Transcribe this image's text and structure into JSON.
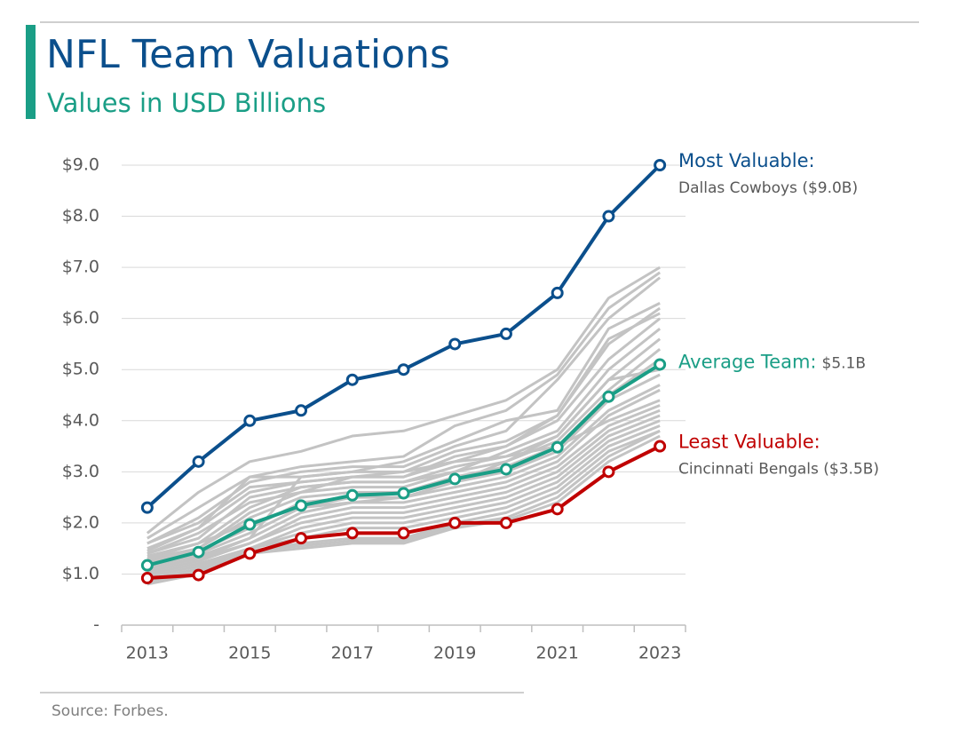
{
  "chart_data": {
    "type": "line",
    "title": "NFL Team Valuations",
    "subtitle": "Values in USD Billions",
    "source": "Source: Forbes.",
    "categories": [
      "2013",
      null,
      "2015",
      null,
      "2017",
      null,
      "2019",
      null,
      "2021",
      null,
      "2023"
    ],
    "ylim": [
      0,
      9
    ],
    "yticks": [
      {
        "value": 0,
        "label": "-"
      },
      {
        "value": 1,
        "label": "$1.0"
      },
      {
        "value": 2,
        "label": "$2.0"
      },
      {
        "value": 3,
        "label": "$3.0"
      },
      {
        "value": 4,
        "label": "$4.0"
      },
      {
        "value": 5,
        "label": "$5.0"
      },
      {
        "value": 6,
        "label": "$6.0"
      },
      {
        "value": 7,
        "label": "$7.0"
      },
      {
        "value": 8,
        "label": "$8.0"
      },
      {
        "value": 9,
        "label": "$9.0"
      }
    ],
    "grid": true,
    "series": [
      {
        "color": "#c3c3c3",
        "values": [
          1.8,
          2.6,
          3.2,
          3.4,
          3.7,
          3.8,
          4.1,
          4.4,
          5.0,
          6.4,
          7.0
        ]
      },
      {
        "color": "#c3c3c3",
        "values": [
          1.7,
          2.3,
          2.9,
          3.1,
          3.2,
          3.3,
          3.9,
          4.2,
          4.9,
          6.2,
          6.9
        ]
      },
      {
        "color": "#c3c3c3",
        "values": [
          1.6,
          2.1,
          2.8,
          3.0,
          3.1,
          3.1,
          3.5,
          3.8,
          4.8,
          6.0,
          6.8
        ]
      },
      {
        "color": "#c3c3c3",
        "values": [
          1.5,
          1.9,
          2.9,
          2.9,
          3.0,
          3.2,
          3.6,
          4.0,
          4.2,
          5.8,
          6.3
        ]
      },
      {
        "color": "#c3c3c3",
        "values": [
          1.45,
          1.9,
          2.6,
          2.8,
          2.9,
          3.0,
          3.4,
          3.6,
          4.1,
          5.5,
          6.2
        ]
      },
      {
        "color": "#c3c3c3",
        "values": [
          1.4,
          1.8,
          2.4,
          2.6,
          2.9,
          2.9,
          3.2,
          3.5,
          4.0,
          5.2,
          6.0
        ]
      },
      {
        "color": "#c3c3c3",
        "values": [
          1.4,
          1.7,
          2.5,
          2.7,
          2.8,
          2.8,
          3.0,
          3.4,
          3.8,
          5.0,
          5.8
        ]
      },
      {
        "color": "#c3c3c3",
        "values": [
          1.3,
          1.6,
          2.3,
          2.7,
          2.8,
          2.8,
          3.1,
          3.3,
          3.7,
          4.8,
          5.6
        ]
      },
      {
        "color": "#c3c3c3",
        "values": [
          1.3,
          1.5,
          2.2,
          2.6,
          2.7,
          2.7,
          3.0,
          3.2,
          3.6,
          4.6,
          5.4
        ]
      },
      {
        "color": "#c3c3c3",
        "values": [
          1.25,
          1.5,
          2.1,
          2.5,
          2.6,
          2.6,
          2.9,
          3.1,
          3.5,
          4.5,
          5.2
        ]
      },
      {
        "color": "#c3c3c3",
        "values": [
          1.2,
          1.45,
          1.9,
          2.4,
          2.5,
          2.5,
          2.8,
          3.0,
          3.4,
          4.4,
          4.9
        ]
      },
      {
        "color": "#c3c3c3",
        "values": [
          1.2,
          1.4,
          1.8,
          2.3,
          2.4,
          2.5,
          2.7,
          2.9,
          3.3,
          4.2,
          4.7
        ]
      },
      {
        "color": "#c3c3c3",
        "values": [
          1.15,
          1.35,
          1.7,
          2.2,
          2.4,
          2.4,
          2.6,
          2.8,
          3.2,
          4.1,
          4.6
        ]
      },
      {
        "color": "#c3c3c3",
        "values": [
          1.1,
          1.3,
          1.7,
          2.9,
          3.0,
          3.0,
          3.2,
          3.3,
          3.5,
          4.0,
          4.4
        ]
      },
      {
        "color": "#c3c3c3",
        "values": [
          1.1,
          1.3,
          1.6,
          2.1,
          2.3,
          2.3,
          2.5,
          2.7,
          3.1,
          3.9,
          4.3
        ]
      },
      {
        "color": "#c3c3c3",
        "values": [
          1.05,
          1.25,
          1.6,
          2.0,
          2.2,
          2.2,
          2.4,
          2.6,
          3.0,
          3.8,
          4.2
        ]
      },
      {
        "color": "#c3c3c3",
        "values": [
          1.0,
          1.2,
          1.5,
          1.9,
          2.1,
          2.1,
          2.3,
          2.5,
          2.9,
          3.7,
          4.1
        ]
      },
      {
        "color": "#c3c3c3",
        "values": [
          1.0,
          1.2,
          1.5,
          1.8,
          2.0,
          2.0,
          2.2,
          2.4,
          2.8,
          3.6,
          4.0
        ]
      },
      {
        "color": "#c3c3c3",
        "values": [
          0.95,
          1.15,
          1.5,
          1.7,
          1.9,
          1.9,
          2.1,
          2.3,
          2.7,
          3.5,
          3.9
        ]
      },
      {
        "color": "#c3c3c3",
        "values": [
          0.9,
          1.1,
          1.45,
          1.6,
          1.7,
          1.7,
          2.0,
          2.2,
          2.6,
          3.4,
          3.8
        ]
      },
      {
        "color": "#c3c3c3",
        "values": [
          0.85,
          1.05,
          1.45,
          1.55,
          1.65,
          1.65,
          1.95,
          2.1,
          2.5,
          3.3,
          3.8
        ]
      },
      {
        "color": "#c3c3c3",
        "values": [
          0.8,
          1.0,
          1.4,
          1.5,
          1.6,
          1.6,
          1.9,
          2.05,
          2.4,
          3.2,
          3.7
        ]
      },
      {
        "color": "#c3c3c3",
        "values": [
          1.35,
          1.6,
          2.0,
          2.3,
          2.5,
          2.6,
          2.8,
          3.2,
          3.7,
          4.8,
          5.0
        ]
      },
      {
        "color": "#c3c3c3",
        "values": [
          1.6,
          2.0,
          2.7,
          2.8,
          2.9,
          2.9,
          3.3,
          3.5,
          4.1,
          5.6,
          6.1
        ]
      },
      {
        "name": "Average Team:",
        "note": "$5.1B",
        "color": "#1a9e86",
        "values": [
          1.17,
          1.43,
          1.97,
          2.34,
          2.54,
          2.58,
          2.86,
          3.05,
          3.48,
          4.47,
          5.1
        ]
      },
      {
        "name": "Least Valuable:",
        "note": "Cincinnati Bengals ($3.5B)",
        "color": "#c00000",
        "values": [
          0.92,
          0.98,
          1.4,
          1.7,
          1.8,
          1.8,
          2.0,
          2.0,
          2.27,
          3.0,
          3.5
        ]
      },
      {
        "name": "Most Valuable:",
        "note": "Dallas Cowboys ($9.0B)",
        "color": "#0b4f8c",
        "values": [
          2.3,
          3.2,
          4.0,
          4.2,
          4.8,
          5.0,
          5.5,
          5.7,
          6.5,
          8.0,
          9.0
        ]
      }
    ]
  }
}
